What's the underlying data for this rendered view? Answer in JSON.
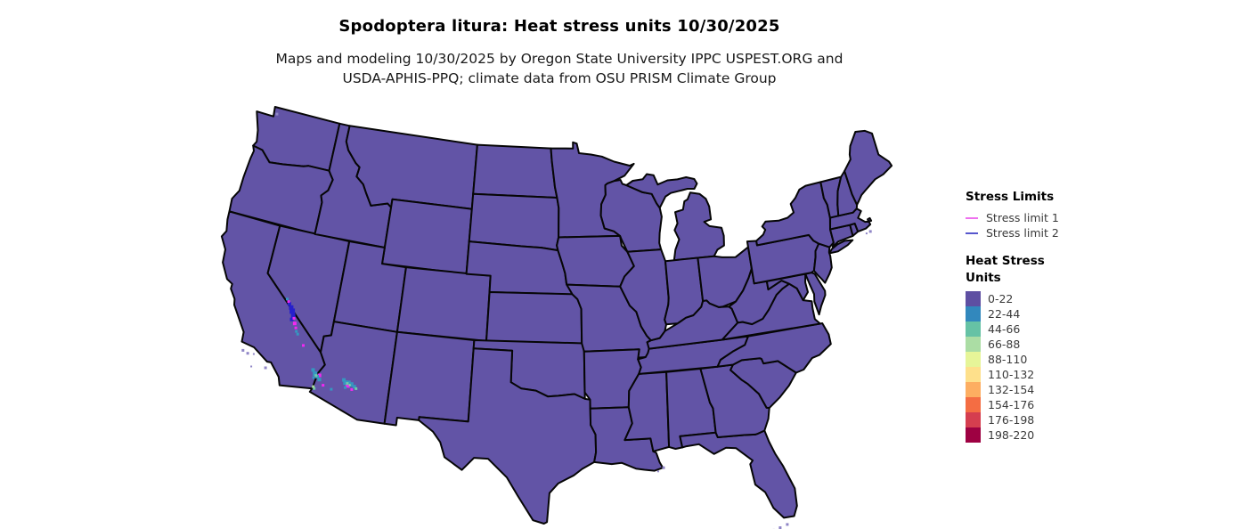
{
  "title": "Spodoptera litura: Heat stress units 10/30/2025",
  "subtitle_line1": "Maps and modeling 10/30/2025 by Oregon State University IPPC USPEST.ORG and",
  "subtitle_line2": "USDA-APHIS-PPQ; climate data from OSU PRISM Climate Group",
  "stress_limits_legend": {
    "title": "Stress Limits",
    "items": [
      {
        "label": "Stress limit 1",
        "color": "#ee70ee"
      },
      {
        "label": "Stress limit 2",
        "color": "#5757cd"
      }
    ]
  },
  "heat_legend": {
    "title_line1": "Heat Stress",
    "title_line2": "Units",
    "bins": [
      {
        "label": "0-22",
        "color": "#5e4fa2"
      },
      {
        "label": "22-44",
        "color": "#3288bd"
      },
      {
        "label": "44-66",
        "color": "#66c2a5"
      },
      {
        "label": "66-88",
        "color": "#abdda4"
      },
      {
        "label": "88-110",
        "color": "#e6f598"
      },
      {
        "label": "110-132",
        "color": "#fee08b"
      },
      {
        "label": "132-154",
        "color": "#fdae61"
      },
      {
        "label": "154-176",
        "color": "#f46d43"
      },
      {
        "label": "176-198",
        "color": "#d53e4f"
      },
      {
        "label": "198-220",
        "color": "#9e0142"
      }
    ]
  },
  "map": {
    "land_fill": "#6254a6",
    "border_color": "#060606",
    "stress_limit_1_map_color": "#f228f2",
    "stress_limit_2_map_color": "#2620cc",
    "coastal_fringe_color": "#8f85c6",
    "hotspots": [
      {
        "lon": -117.75,
        "lat": 37.5,
        "color": "#2620cc",
        "size": 4
      },
      {
        "lon": -117.55,
        "lat": 37.3,
        "color": "#2620cc",
        "size": 5
      },
      {
        "lon": -117.4,
        "lat": 37.1,
        "color": "#2620cc",
        "size": 6
      },
      {
        "lon": -117.25,
        "lat": 36.85,
        "color": "#2620cc",
        "size": 5
      },
      {
        "lon": -117.3,
        "lat": 36.6,
        "color": "#2620cc",
        "size": 4
      },
      {
        "lon": -117.85,
        "lat": 37.62,
        "color": "#f228f2",
        "size": 3
      },
      {
        "lon": -117.15,
        "lat": 36.7,
        "color": "#f228f2",
        "size": 3
      },
      {
        "lon": -117.0,
        "lat": 36.4,
        "color": "#f228f2",
        "size": 4
      },
      {
        "lon": -116.85,
        "lat": 36.15,
        "color": "#f228f2",
        "size": 3
      },
      {
        "lon": -116.0,
        "lat": 35.2,
        "color": "#f228f2",
        "size": 3
      },
      {
        "lon": -114.35,
        "lat": 33.6,
        "color": "#f228f2",
        "size": 4
      },
      {
        "lon": -113.95,
        "lat": 33.05,
        "color": "#f228f2",
        "size": 3
      },
      {
        "lon": -112.15,
        "lat": 33.3,
        "color": "#f228f2",
        "size": 5
      },
      {
        "lon": -111.8,
        "lat": 33.1,
        "color": "#f228f2",
        "size": 3
      },
      {
        "lon": -118.0,
        "lat": 37.75,
        "color": "#3697c0",
        "size": 3
      },
      {
        "lon": -116.75,
        "lat": 35.95,
        "color": "#3697c0",
        "size": 3
      },
      {
        "lon": -116.6,
        "lat": 35.8,
        "color": "#3697c0",
        "size": 3
      },
      {
        "lon": -114.9,
        "lat": 33.85,
        "color": "#3697c0",
        "size": 4
      },
      {
        "lon": -114.7,
        "lat": 33.65,
        "color": "#3697c0",
        "size": 5
      },
      {
        "lon": -114.5,
        "lat": 33.5,
        "color": "#3697c0",
        "size": 4
      },
      {
        "lon": -114.3,
        "lat": 33.35,
        "color": "#3697c0",
        "size": 4
      },
      {
        "lon": -114.75,
        "lat": 33.4,
        "color": "#3697c0",
        "size": 3
      },
      {
        "lon": -113.3,
        "lat": 32.9,
        "color": "#3697c0",
        "size": 3
      },
      {
        "lon": -112.5,
        "lat": 33.6,
        "color": "#3697c0",
        "size": 4
      },
      {
        "lon": -112.35,
        "lat": 33.45,
        "color": "#3697c0",
        "size": 5
      },
      {
        "lon": -112.1,
        "lat": 33.5,
        "color": "#3697c0",
        "size": 4
      },
      {
        "lon": -111.9,
        "lat": 33.4,
        "color": "#3697c0",
        "size": 5
      },
      {
        "lon": -111.65,
        "lat": 33.3,
        "color": "#3697c0",
        "size": 4
      },
      {
        "lon": -112.3,
        "lat": 33.15,
        "color": "#3697c0",
        "size": 3
      },
      {
        "lon": -114.6,
        "lat": 33.55,
        "color": "#6fc8ad",
        "size": 3
      },
      {
        "lon": -112.2,
        "lat": 33.42,
        "color": "#6fc8ad",
        "size": 3
      },
      {
        "lon": -114.55,
        "lat": 32.75,
        "color": "#6fc8ad",
        "size": 3
      },
      {
        "lon": -111.5,
        "lat": 33.2,
        "color": "#6fc8ad",
        "size": 3
      },
      {
        "lon": -114.65,
        "lat": 32.85,
        "color": "#a6daa0",
        "size": 3
      },
      {
        "lon": -112.0,
        "lat": 33.35,
        "color": "#a6daa0",
        "size": 2
      }
    ],
    "coastal_fringe": [
      {
        "lon": -120.35,
        "lat": 34.05,
        "size": 3
      },
      {
        "lon": -119.95,
        "lat": 33.95,
        "size": 3
      },
      {
        "lon": -119.5,
        "lat": 34.0,
        "size": 2
      },
      {
        "lon": -118.4,
        "lat": 33.35,
        "size": 3
      },
      {
        "lon": -119.45,
        "lat": 33.22,
        "size": 2
      },
      {
        "lon": -122.85,
        "lat": 48.6,
        "size": 3
      },
      {
        "lon": -80.95,
        "lat": 24.75,
        "size": 3
      },
      {
        "lon": -81.45,
        "lat": 24.62,
        "size": 3
      },
      {
        "lon": -81.9,
        "lat": 24.55,
        "size": 2
      },
      {
        "lon": -88.95,
        "lat": 29.15,
        "size": 3
      },
      {
        "lon": -89.35,
        "lat": 28.95,
        "size": 2
      },
      {
        "lon": -70.3,
        "lat": 41.3,
        "size": 3
      },
      {
        "lon": -70.65,
        "lat": 41.25,
        "size": 2
      }
    ]
  }
}
